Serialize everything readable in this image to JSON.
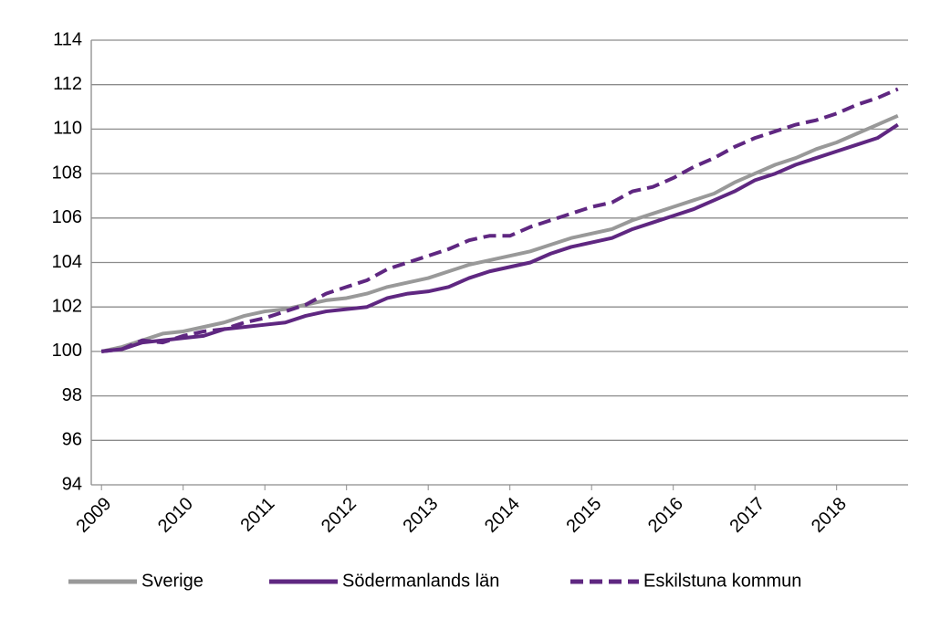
{
  "chart_data": {
    "type": "line",
    "categories": [
      "2009",
      null,
      null,
      null,
      "2010",
      null,
      null,
      null,
      "2011",
      null,
      null,
      null,
      "2012",
      null,
      null,
      null,
      "2013",
      null,
      null,
      null,
      "2014",
      null,
      null,
      null,
      "2015",
      null,
      null,
      null,
      "2016",
      null,
      null,
      null,
      "2017",
      null,
      null,
      null,
      "2018",
      null,
      null,
      null
    ],
    "series": [
      {
        "name": "Sverige",
        "color": "#999999",
        "dashed": false,
        "values": [
          100.0,
          100.2,
          100.5,
          100.8,
          100.9,
          101.1,
          101.3,
          101.6,
          101.8,
          101.9,
          102.1,
          102.3,
          102.4,
          102.6,
          102.9,
          103.1,
          103.3,
          103.6,
          103.9,
          104.1,
          104.3,
          104.5,
          104.8,
          105.1,
          105.3,
          105.5,
          105.9,
          106.2,
          106.5,
          106.8,
          107.1,
          107.6,
          108.0,
          108.4,
          108.7,
          109.1,
          109.4,
          109.8,
          110.2,
          110.6
        ]
      },
      {
        "name": "Södermanlands län",
        "color": "#5f2781",
        "dashed": false,
        "values": [
          100.0,
          100.1,
          100.4,
          100.5,
          100.6,
          100.7,
          101.0,
          101.1,
          101.2,
          101.3,
          101.6,
          101.8,
          101.9,
          102.0,
          102.4,
          102.6,
          102.7,
          102.9,
          103.3,
          103.6,
          103.8,
          104.0,
          104.4,
          104.7,
          104.9,
          105.1,
          105.5,
          105.8,
          106.1,
          106.4,
          106.8,
          107.2,
          107.7,
          108.0,
          108.4,
          108.7,
          109.0,
          109.3,
          109.6,
          110.2
        ]
      },
      {
        "name": "Eskilstuna kommun",
        "color": "#5f2781",
        "dashed": true,
        "values": [
          100.0,
          100.1,
          100.5,
          100.4,
          100.7,
          100.9,
          101.0,
          101.3,
          101.5,
          101.8,
          102.1,
          102.6,
          102.9,
          103.2,
          103.7,
          104.0,
          104.3,
          104.6,
          105.0,
          105.2,
          105.2,
          105.6,
          105.9,
          106.2,
          106.5,
          106.7,
          107.2,
          107.4,
          107.8,
          108.3,
          108.7,
          109.2,
          109.6,
          109.9,
          110.2,
          110.4,
          110.7,
          111.1,
          111.4,
          111.8
        ]
      }
    ],
    "ylim": [
      94,
      114
    ],
    "yticks": [
      94,
      96,
      98,
      100,
      102,
      104,
      106,
      108,
      110,
      112,
      114
    ],
    "grid": true,
    "legend": "bottom"
  }
}
